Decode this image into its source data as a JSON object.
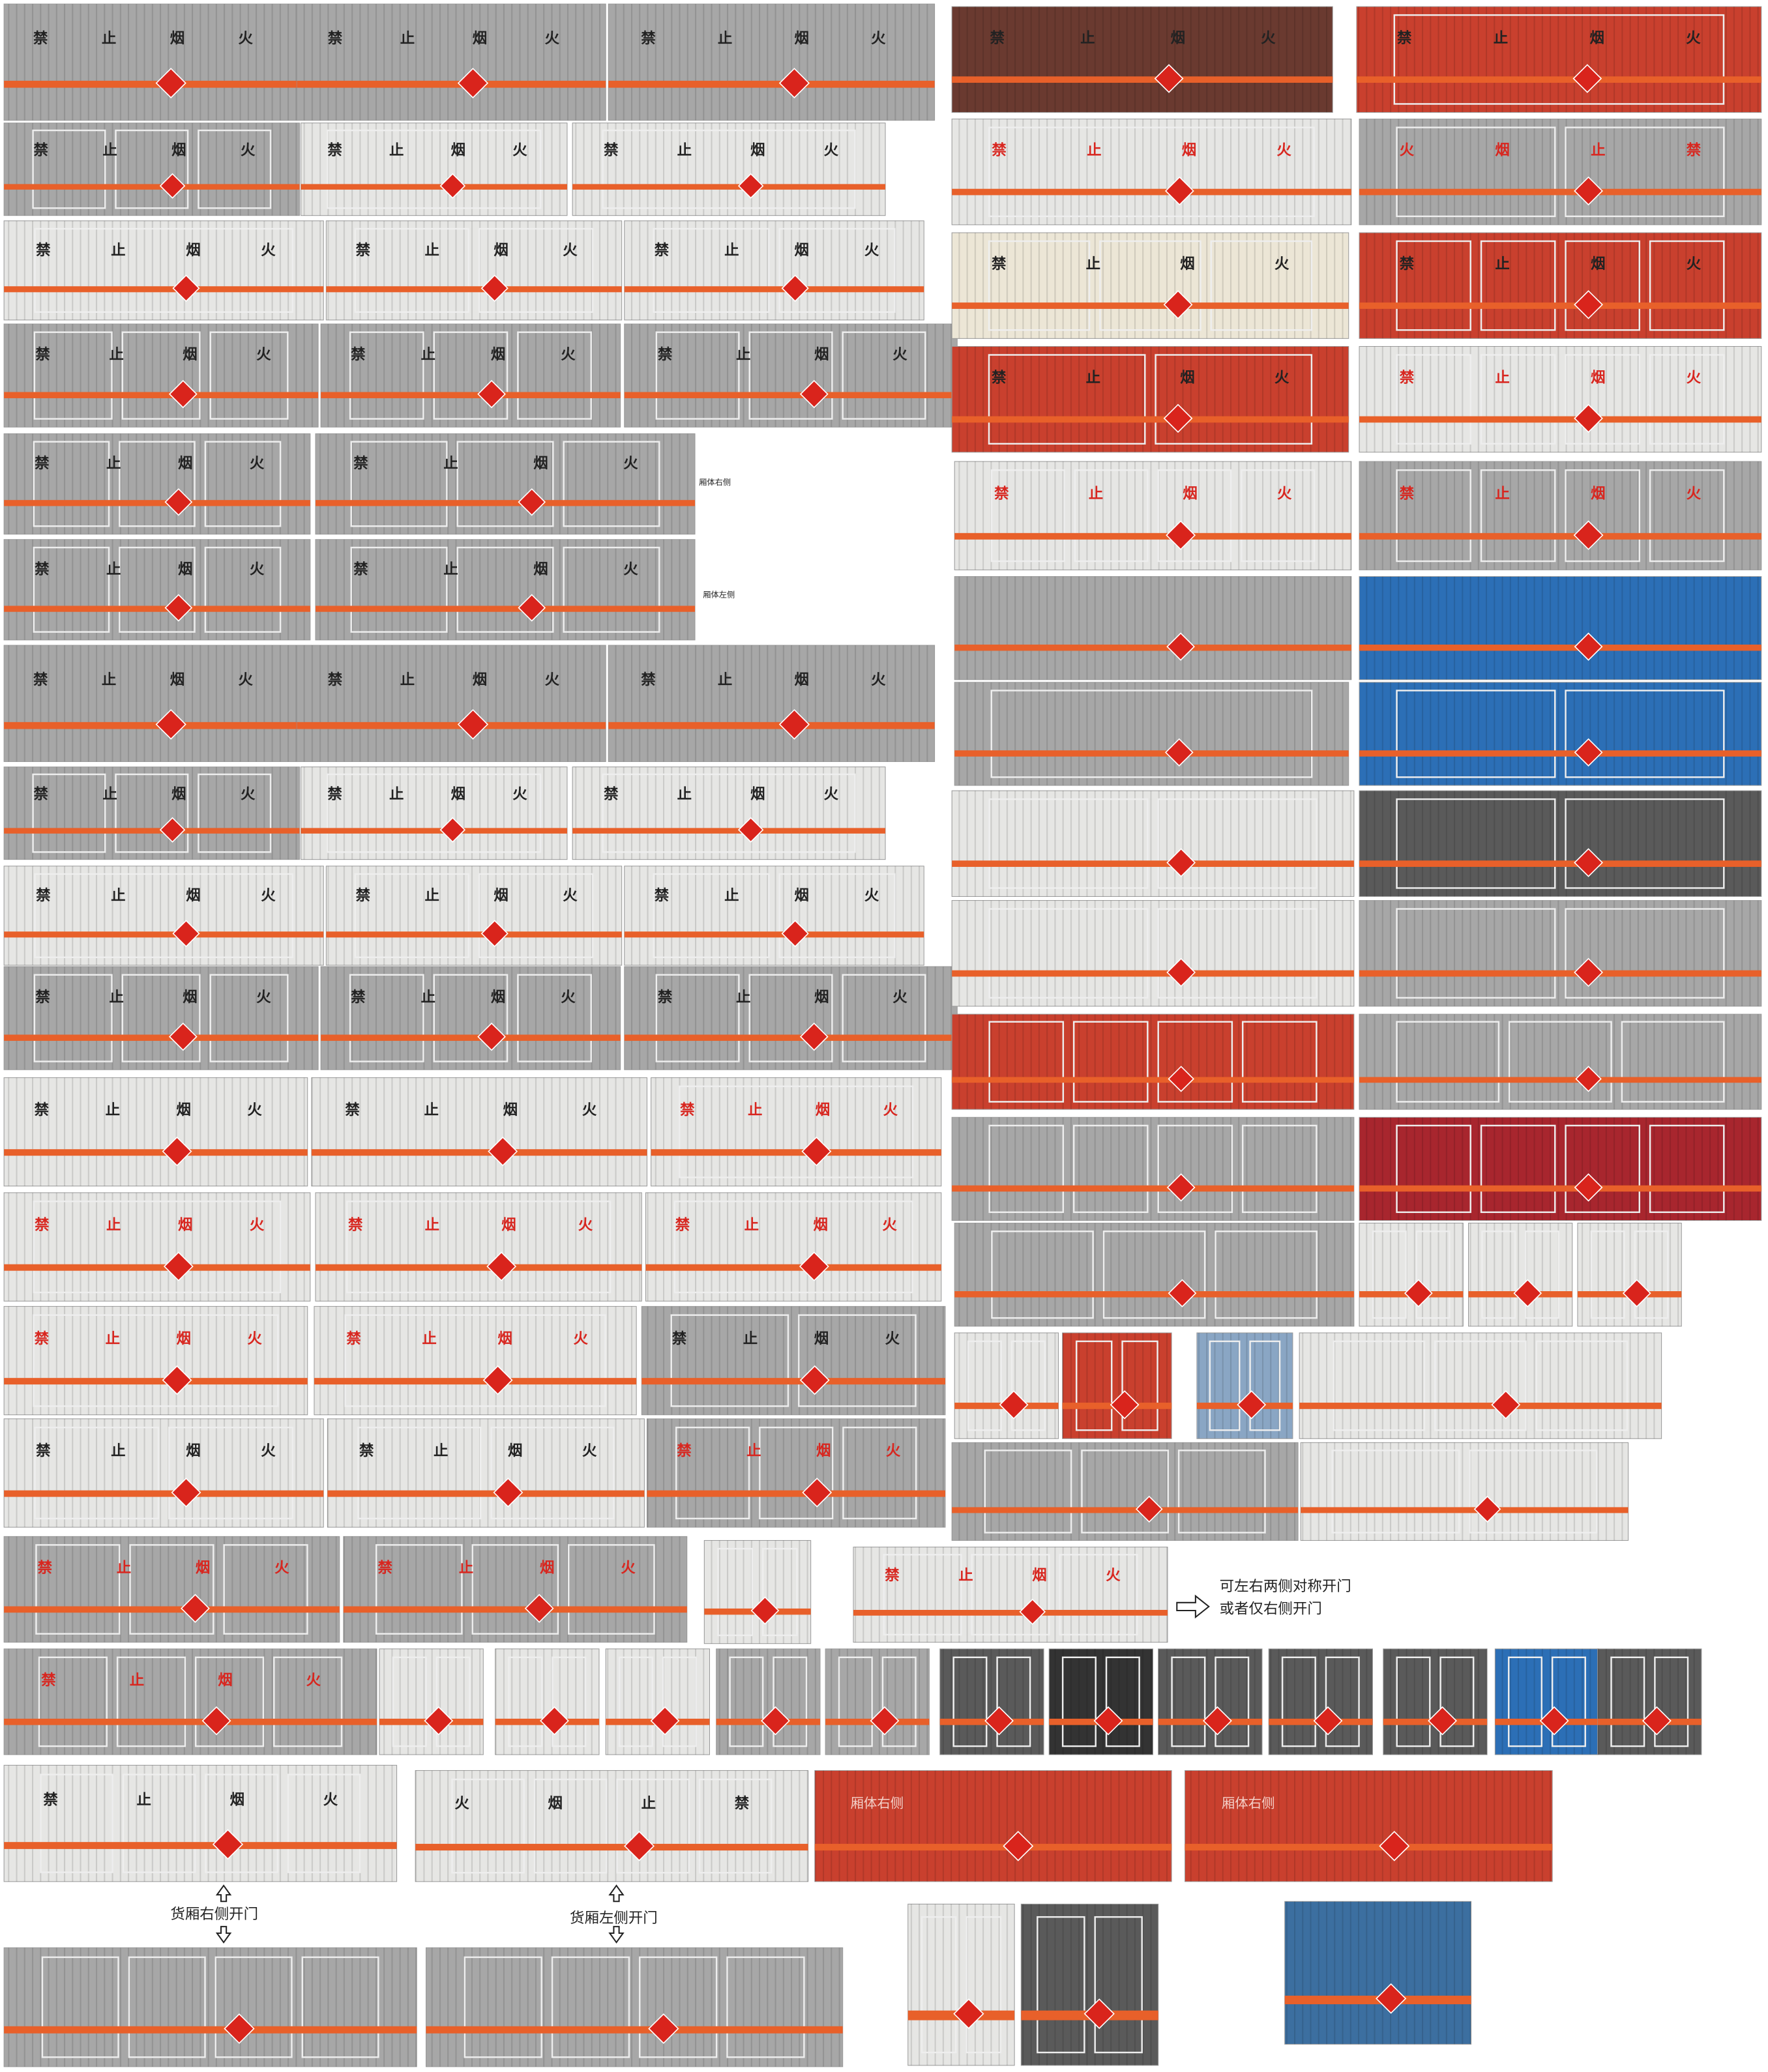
{
  "signs": [
    "禁止烟火",
    "禁止烟火",
    "禁止烟火",
    "禁止烟火",
    "禁止烟火",
    "禁止烟火",
    "禁止烟火",
    "禁止烟火",
    "禁止烟火",
    "禁止烟火",
    "禁止烟火",
    "禁止烟火",
    "禁止烟火",
    "禁止烟火",
    "禁止烟火",
    "禁止烟火",
    "禁止烟火",
    "禁止烟火",
    "禁止烟火",
    "禁止烟火",
    "禁止烟火",
    "禁止烟火",
    "禁止烟火",
    "禁止烟火",
    "禁止烟火",
    "禁止烟火",
    "禁止烟火",
    "禁止烟火",
    "禁止烟火",
    "禁止烟火",
    "禁止烟火",
    "禁止烟火",
    "禁止烟火",
    "禁止烟火",
    "禁止烟火",
    "禁止烟火",
    "禁止烟火",
    "禁止烟火",
    "禁止烟火",
    "禁止烟火",
    "禁止烟火",
    "禁止烟火",
    "禁止烟火",
    "禁止烟火",
    "禁止烟火",
    "火烟止禁",
    "禁止烟火",
    "禁止烟火",
    "禁止烟火",
    "火烟止禁",
    "禁止烟火",
    "禁止烟火",
    "禁止烟火",
    "禁止烟火",
    "禁止烟火",
    "禁止烟火"
  ],
  "side_notes": [
    "厢体右侧",
    "厢体左侧"
  ],
  "door_note": [
    "可左右两侧对称开门",
    "或者仅右侧开门"
  ],
  "open_notes": [
    "货厢右侧开门",
    "货厢左侧开门"
  ],
  "box_labels": [
    "厢体右侧",
    "厢体右侧"
  ]
}
